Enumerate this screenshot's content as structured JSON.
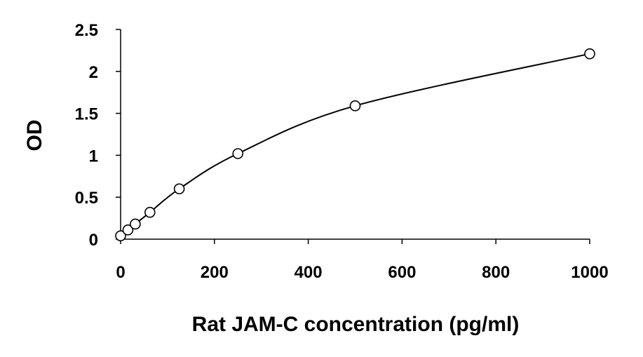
{
  "chart_data": {
    "type": "scatter",
    "title": "",
    "xlabel": "Rat JAM-C concentration (pg/ml)",
    "ylabel": "OD",
    "xlim": [
      0,
      1000
    ],
    "ylim": [
      0,
      2.5
    ],
    "x_ticks": [
      0,
      200,
      400,
      600,
      800,
      1000
    ],
    "y_ticks": [
      0,
      0.5,
      1,
      1.5,
      2,
      2.5
    ],
    "x_tick_labels": [
      "0",
      "200",
      "400",
      "600",
      "800",
      "1000"
    ],
    "y_tick_labels": [
      "0",
      "0.5",
      "1",
      "1.5",
      "2",
      "2.5"
    ],
    "grid": false,
    "legend": "none",
    "series": [
      {
        "x": [
          0,
          15.6,
          31.25,
          62.5,
          125,
          250,
          500,
          1000
        ],
        "y": [
          0.04,
          0.11,
          0.18,
          0.32,
          0.6,
          1.02,
          1.59,
          2.21
        ],
        "marker": "open-circle",
        "line": "smooth"
      }
    ],
    "colors": {
      "line": "#000000",
      "marker": "#000000",
      "axis": "#000000"
    }
  }
}
